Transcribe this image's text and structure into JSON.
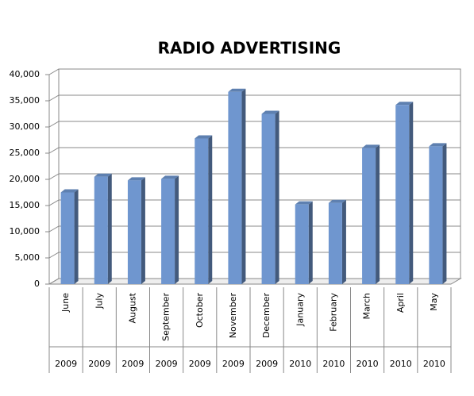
{
  "chart_data": {
    "type": "bar3d",
    "title": "RADIO ADVERTISING",
    "categories": [
      "June",
      "July",
      "August",
      "September",
      "October",
      "November",
      "December",
      "January",
      "February",
      "March",
      "April",
      "May"
    ],
    "category_groups": [
      "2009",
      "2009",
      "2009",
      "2009",
      "2009",
      "2009",
      "2009",
      "2010",
      "2010",
      "2010",
      "2010",
      "2010"
    ],
    "values": [
      17500,
      20500,
      19800,
      20100,
      27800,
      36700,
      32500,
      15200,
      15500,
      26000,
      34200,
      26300
    ],
    "color": "#6f96cf",
    "ylim": [
      0,
      40000
    ],
    "yticks": [
      0,
      {
        "value": 5000,
        "label": "5,000"
      },
      {
        "value": 10000,
        "label": "10,000"
      },
      {
        "value": 15000,
        "label": "15,000"
      },
      {
        "value": 20000,
        "label": "20,000"
      },
      {
        "value": 25000,
        "label": "25,000"
      },
      {
        "value": 30000,
        "label": "30,000"
      },
      {
        "value": 35000,
        "label": "35,000"
      },
      {
        "value": 40000,
        "label": "40,000"
      }
    ],
    "grid": true
  }
}
